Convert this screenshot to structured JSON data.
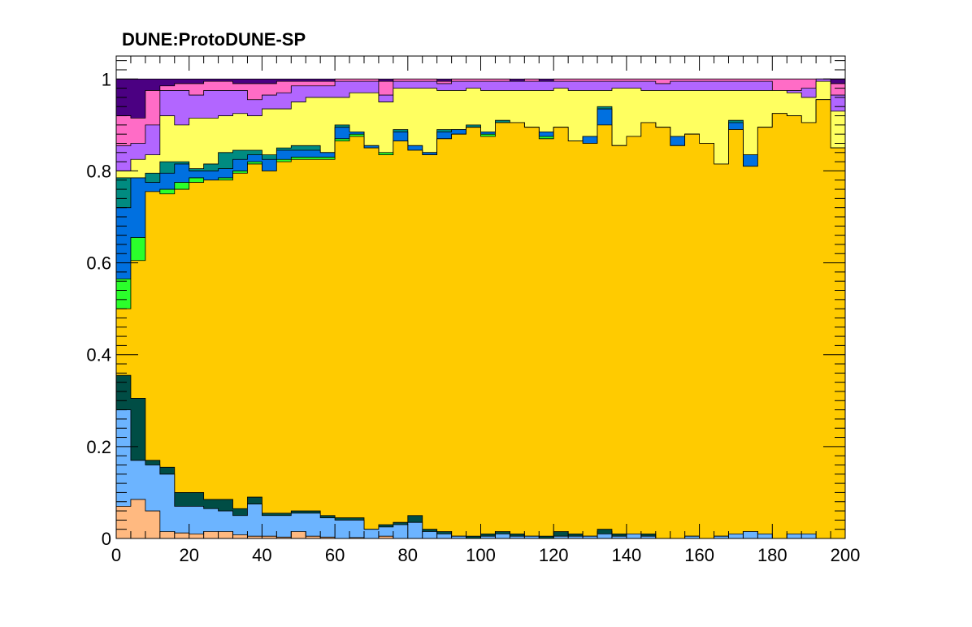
{
  "chart_data": {
    "type": "area",
    "stacking": "step-histogram",
    "title": "DUNE:ProtoDUNE-SP",
    "xlabel": "",
    "ylabel": "",
    "xlim": [
      0,
      200
    ],
    "ylim": [
      0,
      1.05
    ],
    "x_ticks": [
      0,
      20,
      40,
      60,
      80,
      100,
      120,
      140,
      160,
      180,
      200
    ],
    "x_tick_labels": [
      "0",
      "20",
      "40",
      "60",
      "80",
      "100",
      "120",
      "140",
      "160",
      "180",
      "200"
    ],
    "y_ticks": [
      0,
      0.2,
      0.4,
      0.6,
      0.8,
      1
    ],
    "y_tick_labels": [
      "0",
      "0.2",
      "0.4",
      "0.6",
      "0.8",
      "1"
    ],
    "grid": false,
    "legend": "none",
    "bin_edges": [
      0,
      4,
      8,
      12,
      16,
      20,
      24,
      28,
      32,
      36,
      40,
      44,
      48,
      52,
      56,
      60,
      64,
      68,
      72,
      76,
      80,
      84,
      88,
      92,
      96,
      100,
      104,
      108,
      112,
      116,
      120,
      124,
      128,
      132,
      136,
      140,
      144,
      148,
      152,
      156,
      160,
      164,
      168,
      172,
      176,
      180,
      184,
      188,
      192,
      196,
      200
    ],
    "cumulative_boundaries": [
      {
        "color": "#ffb980",
        "values": [
          0.07,
          0.085,
          0.06,
          0.015,
          0.012,
          0.01,
          0.015,
          0.015,
          0.008,
          0.005,
          0.005,
          0.003,
          0.015,
          0.005,
          0.003,
          0,
          0.002,
          0,
          0.005,
          0,
          0,
          0,
          0,
          0,
          0,
          0,
          0,
          0,
          0,
          0,
          0,
          0,
          0,
          0,
          0,
          0,
          0,
          0,
          0,
          0,
          0,
          0,
          0,
          0,
          0,
          0,
          0,
          0,
          0,
          0
        ]
      },
      {
        "color": "#6cb4ff",
        "values": [
          0.28,
          0.17,
          0.16,
          0.14,
          0.07,
          0.07,
          0.065,
          0.06,
          0.05,
          0.075,
          0.05,
          0.05,
          0.055,
          0.055,
          0.045,
          0.04,
          0.04,
          0.02,
          0.025,
          0.03,
          0.035,
          0.015,
          0.01,
          0.005,
          0,
          0.005,
          0.01,
          0.005,
          0.005,
          0,
          0.005,
          0.005,
          0.005,
          0.01,
          0.005,
          0.01,
          0.005,
          0,
          0,
          0.005,
          0,
          0.005,
          0.01,
          0.015,
          0.01,
          0,
          0.01,
          0.01,
          0,
          0
        ]
      },
      {
        "color": "#004d45",
        "values": [
          0.355,
          0.305,
          0.17,
          0.155,
          0.1,
          0.1,
          0.085,
          0.085,
          0.065,
          0.09,
          0.055,
          0.055,
          0.06,
          0.06,
          0.05,
          0.045,
          0.045,
          0.02,
          0.03,
          0.035,
          0.05,
          0.02,
          0.015,
          0.005,
          0.005,
          0.01,
          0.015,
          0.01,
          0.005,
          0.005,
          0.015,
          0.01,
          0.005,
          0.02,
          0.01,
          0.01,
          0.01,
          0,
          0,
          0.005,
          0,
          0.005,
          0.01,
          0.015,
          0.01,
          0,
          0.01,
          0.01,
          0,
          0
        ]
      },
      {
        "color": "#ffcb00",
        "values": [
          0.5,
          0.605,
          0.755,
          0.75,
          0.76,
          0.775,
          0.78,
          0.78,
          0.795,
          0.815,
          0.8,
          0.82,
          0.825,
          0.825,
          0.825,
          0.865,
          0.875,
          0.85,
          0.835,
          0.865,
          0.845,
          0.835,
          0.87,
          0.88,
          0.895,
          0.875,
          0.905,
          0.905,
          0.895,
          0.87,
          0.895,
          0.865,
          0.86,
          0.9,
          0.855,
          0.875,
          0.905,
          0.895,
          0.855,
          0.88,
          0.86,
          0.815,
          0.89,
          0.81,
          0.895,
          0.925,
          0.92,
          0.905,
          0.955,
          0.85
        ]
      },
      {
        "color": "#2bff2b",
        "values": [
          0.565,
          0.655,
          0.755,
          0.76,
          0.775,
          0.785,
          0.78,
          0.785,
          0.8,
          0.82,
          0.8,
          0.825,
          0.83,
          0.83,
          0.83,
          0.87,
          0.88,
          0.85,
          0.84,
          0.865,
          0.845,
          0.835,
          0.87,
          0.88,
          0.895,
          0.88,
          0.905,
          0.905,
          0.895,
          0.875,
          0.895,
          0.865,
          0.86,
          0.9,
          0.855,
          0.875,
          0.905,
          0.895,
          0.855,
          0.88,
          0.86,
          0.815,
          0.89,
          0.81,
          0.895,
          0.925,
          0.92,
          0.905,
          0.955,
          0.85
        ]
      },
      {
        "color": "#0070e0",
        "values": [
          0.72,
          0.785,
          0.775,
          0.795,
          0.815,
          0.8,
          0.8,
          0.805,
          0.825,
          0.835,
          0.825,
          0.845,
          0.845,
          0.845,
          0.84,
          0.895,
          0.885,
          0.855,
          0.835,
          0.885,
          0.855,
          0.84,
          0.885,
          0.89,
          0.895,
          0.885,
          0.905,
          0.905,
          0.895,
          0.885,
          0.895,
          0.865,
          0.875,
          0.935,
          0.855,
          0.875,
          0.905,
          0.895,
          0.875,
          0.88,
          0.86,
          0.815,
          0.905,
          0.835,
          0.895,
          0.925,
          0.92,
          0.905,
          0.955,
          0.85
        ]
      },
      {
        "color": "#008b80",
        "values": [
          0.785,
          0.785,
          0.795,
          0.82,
          0.82,
          0.805,
          0.815,
          0.84,
          0.845,
          0.845,
          0.835,
          0.85,
          0.855,
          0.855,
          0.84,
          0.9,
          0.885,
          0.855,
          0.835,
          0.89,
          0.855,
          0.84,
          0.89,
          0.89,
          0.9,
          0.885,
          0.91,
          0.905,
          0.895,
          0.885,
          0.895,
          0.865,
          0.875,
          0.94,
          0.855,
          0.875,
          0.905,
          0.895,
          0.875,
          0.88,
          0.86,
          0.815,
          0.91,
          0.835,
          0.895,
          0.925,
          0.92,
          0.905,
          0.955,
          0.85
        ]
      },
      {
        "color": "#ffff60",
        "values": [
          0.8,
          0.825,
          0.835,
          0.92,
          0.9,
          0.915,
          0.915,
          0.92,
          0.925,
          0.92,
          0.935,
          0.935,
          0.95,
          0.96,
          0.96,
          0.96,
          0.97,
          0.97,
          0.95,
          0.98,
          0.98,
          0.98,
          0.975,
          0.975,
          0.98,
          0.975,
          0.975,
          0.975,
          0.975,
          0.975,
          0.98,
          0.975,
          0.975,
          0.975,
          0.98,
          0.98,
          0.975,
          0.975,
          0.975,
          0.975,
          0.975,
          0.975,
          0.975,
          0.975,
          0.975,
          0.975,
          0.97,
          0.96,
          0.995,
          0.93
        ]
      },
      {
        "color": "#b266ff",
        "values": [
          0.855,
          0.86,
          0.9,
          0.975,
          0.975,
          0.965,
          0.975,
          0.975,
          0.975,
          0.955,
          0.965,
          0.97,
          0.985,
          0.985,
          0.985,
          0.995,
          0.995,
          0.995,
          0.965,
          0.995,
          0.995,
          0.995,
          0.99,
          0.995,
          0.995,
          0.995,
          0.995,
          0.995,
          0.995,
          0.995,
          0.995,
          0.995,
          0.995,
          0.995,
          0.995,
          0.995,
          0.995,
          0.99,
          0.995,
          0.995,
          0.995,
          0.995,
          0.995,
          0.995,
          0.995,
          0.975,
          0.975,
          0.98,
          1,
          0.965
        ]
      },
      {
        "color": "#ff6cc6",
        "values": [
          0.92,
          0.915,
          0.975,
          0.985,
          0.99,
          0.99,
          0.995,
          0.995,
          0.99,
          0.99,
          0.99,
          0.995,
          0.995,
          0.995,
          0.995,
          1,
          1,
          1,
          0.995,
          1,
          1,
          1,
          0.995,
          1,
          1,
          1,
          1,
          0.98,
          1,
          0.99,
          1,
          1,
          1,
          1,
          1,
          1,
          1,
          1,
          1,
          1,
          1,
          1,
          1,
          1,
          1,
          1,
          1,
          1,
          1,
          0.99
        ]
      },
      {
        "color": "#4b0082",
        "values": [
          1,
          1,
          1,
          1,
          1,
          1,
          1,
          1,
          1,
          1,
          1,
          1,
          1,
          1,
          1,
          1,
          1,
          1,
          1,
          1,
          1,
          1,
          1,
          1,
          1,
          1,
          1,
          1,
          1,
          1,
          1,
          1,
          1,
          1,
          1,
          1,
          1,
          1,
          1,
          1,
          1,
          1,
          1,
          1,
          1,
          1,
          1,
          1,
          1,
          1
        ]
      }
    ]
  }
}
